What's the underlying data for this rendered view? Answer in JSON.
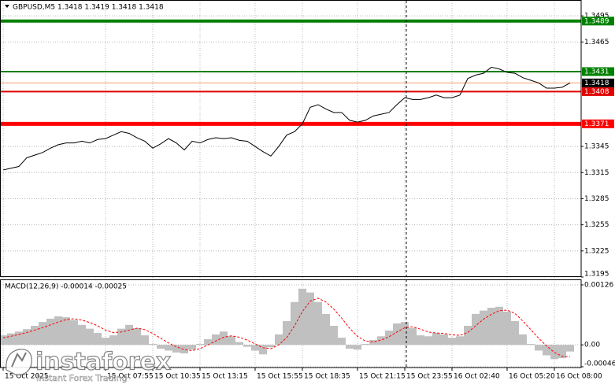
{
  "chart_data": [
    {
      "type": "line",
      "title": "GBPUSD,M5  1.3418 1.3419 1.3418 1.3418",
      "color": "#000000",
      "grid": true,
      "ylim": [
        1.3195,
        1.3506
      ],
      "yticks": [
        1.3495,
        1.3465,
        1.3345,
        1.3315,
        1.3285,
        1.3255,
        1.3225,
        1.3195
      ],
      "categories": [
        "15 Oct 2025",
        null,
        null,
        null,
        null,
        null,
        null,
        null,
        null,
        null,
        null,
        null,
        null,
        "15 Oct 07:55",
        null,
        null,
        null,
        null,
        null,
        "15 Oct 10:35",
        null,
        null,
        null,
        null,
        null,
        "15 Oct 13:15",
        null,
        null,
        null,
        null,
        null,
        null,
        "15 Oct 15:55",
        null,
        null,
        null,
        null,
        null,
        "15 Oct 18:35",
        null,
        null,
        null,
        null,
        null,
        null,
        "15 Oct 21:15",
        null,
        null,
        null,
        null,
        null,
        "15 Oct 23:55",
        null,
        null,
        null,
        null,
        null,
        "16 Oct 02:40",
        null,
        null,
        null,
        null,
        null,
        null,
        "16 Oct 05:20",
        null,
        null,
        null,
        null,
        null,
        "16 Oct 08:00",
        null,
        null
      ],
      "values": [
        1.3318,
        1.332,
        1.3322,
        1.3332,
        1.3335,
        1.3338,
        1.3343,
        1.3347,
        1.3349,
        1.3349,
        1.3351,
        1.3349,
        1.3353,
        1.3354,
        1.3358,
        1.3362,
        1.336,
        1.3355,
        1.3351,
        1.3343,
        1.3348,
        1.3354,
        1.3349,
        1.3341,
        1.3351,
        1.3349,
        1.3353,
        1.3355,
        1.3354,
        1.3355,
        1.3352,
        1.3351,
        1.3345,
        1.3339,
        1.3334,
        1.3345,
        1.3358,
        1.3362,
        1.3371,
        1.339,
        1.3393,
        1.3388,
        1.3384,
        1.3384,
        1.3375,
        1.3373,
        1.3375,
        1.338,
        1.3382,
        1.3384,
        1.3393,
        1.3401,
        1.3399,
        1.3399,
        1.3401,
        1.3404,
        1.3401,
        1.3401,
        1.3404,
        1.3423,
        1.3427,
        1.3429,
        1.3436,
        1.3434,
        1.343,
        1.3429,
        1.3424,
        1.3421,
        1.3418,
        1.3412,
        1.3412,
        1.3413,
        1.3418
      ],
      "levels": [
        {
          "value": 1.3489,
          "color": "#008000",
          "line_width": 4
        },
        {
          "value": 1.3431,
          "color": "#008000",
          "line_width": 2
        },
        {
          "value": 1.3408,
          "color": "#e00000",
          "line_width": 2
        },
        {
          "value": 1.3371,
          "color": "#ff0000",
          "line_width": 5
        }
      ],
      "last_price": 1.3418,
      "last_price_color": "#f0a070"
    },
    {
      "type": "macd",
      "title": "MACD(12,26,9) -0.00014 -0.00025",
      "grid": true,
      "ylim": [
        -0.00046,
        0.00126
      ],
      "yticks": [
        0.00126,
        {
          "value": 0,
          "label": "0.00"
        },
        -0.00046
      ],
      "series": [
        {
          "type": "bar",
          "color": "#c0c0c0",
          "values": [
            0.0002,
            0.00024,
            0.00028,
            0.00033,
            0.0004,
            0.00048,
            0.00055,
            0.0006,
            0.00058,
            0.00052,
            0.00042,
            0.00034,
            0.00025,
            0.00015,
            0.0002,
            0.00034,
            0.00042,
            0.00035,
            0.0002,
            2e-05,
            -8e-05,
            -0.00012,
            -0.00016,
            -0.00018,
            -0.0001,
            2e-05,
            0.00012,
            0.00022,
            0.00028,
            0.00018,
            6e-05,
            -4e-05,
            -0.00012,
            -0.0002,
            -5e-05,
            0.00022,
            0.0005,
            0.0009,
            0.00118,
            0.0011,
            0.0009,
            0.00065,
            0.0004,
            0.00015,
            -8e-05,
            -0.0001,
            2e-05,
            0.0001,
            0.00018,
            0.0003,
            0.00045,
            0.00048,
            0.00035,
            0.0002,
            0.00018,
            0.00025,
            0.00022,
            0.00015,
            0.00018,
            0.0004,
            0.00065,
            0.00072,
            0.00078,
            0.0008,
            0.0007,
            0.0005,
            0.00022,
            2e-05,
            -0.00012,
            -0.00022,
            -0.0003,
            -0.00028,
            -0.00014
          ]
        },
        {
          "type": "line",
          "color": "#ff0000",
          "dashed": true,
          "values": [
            0.00015,
            0.00018,
            0.00022,
            0.00026,
            0.00031,
            0.00036,
            0.00042,
            0.00048,
            0.00053,
            0.00055,
            0.00052,
            0.00047,
            0.0004,
            0.00031,
            0.00026,
            0.00027,
            0.00031,
            0.00035,
            0.00032,
            0.00024,
            0.00014,
            4e-05,
            -4e-05,
            -0.0001,
            -0.00012,
            -8e-05,
            0.0,
            8e-05,
            0.00016,
            0.00019,
            0.00016,
            0.0001,
            2e-05,
            -6e-05,
            -8e-05,
            0.0,
            0.00015,
            0.0004,
            0.0007,
            0.00092,
            0.00098,
            0.0009,
            0.00075,
            0.00056,
            0.00035,
            0.00018,
            8e-05,
            6e-05,
            0.0001,
            0.00017,
            0.00027,
            0.00036,
            0.00038,
            0.00033,
            0.00027,
            0.00025,
            0.00024,
            0.00021,
            0.0002,
            0.00026,
            0.0004,
            0.00054,
            0.00064,
            0.00072,
            0.00073,
            0.00066,
            0.0005,
            0.00032,
            0.00014,
            -2e-05,
            -0.00016,
            -0.00024,
            -0.00025
          ]
        }
      ]
    }
  ],
  "watermark": {
    "name": "instaforex",
    "tagline": "Instant Forex Trading"
  }
}
